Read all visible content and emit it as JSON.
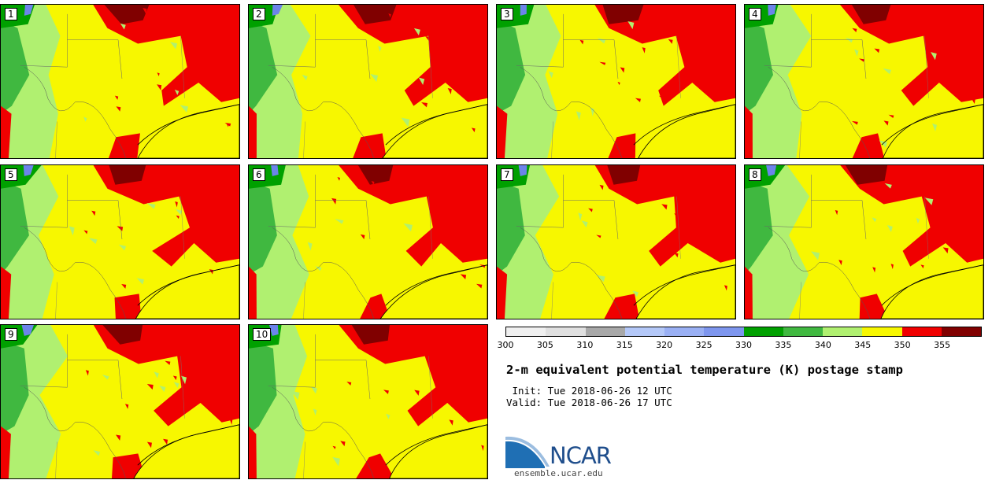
{
  "members": [
    "1",
    "2",
    "3",
    "4",
    "5",
    "6",
    "7",
    "8",
    "9",
    "10"
  ],
  "colorbar": {
    "ticks": [
      "300",
      "305",
      "310",
      "315",
      "320",
      "325",
      "330",
      "335",
      "340",
      "345",
      "350",
      "355"
    ],
    "colors": [
      "#f0f0f0",
      "#e0e0e0",
      "#d2d2d2",
      "#a8a8a8",
      "#b4c8f8",
      "#9ab0f4",
      "#7e96ee",
      "#6c84ea",
      "#00a000",
      "#40b840",
      "#b0f070",
      "#f7f700",
      "#f00000",
      "#d80000",
      "#800000"
    ]
  },
  "title": "2-m equivalent potential temperature (K) postage stamp",
  "init": " Init: Tue 2018-06-26 12 UTC",
  "valid": "Valid: Tue 2018-06-26 17 UTC",
  "logo": {
    "text": "NCAR",
    "url_text": "ensemble.ucar.edu"
  },
  "field_colors": {
    "red": "#f00000",
    "dark_red": "#800000",
    "light_green": "#b0f070",
    "green": "#40b840",
    "dark_green": "#00a000",
    "blue": "#6c84ea",
    "yellow": "#f7f700"
  }
}
